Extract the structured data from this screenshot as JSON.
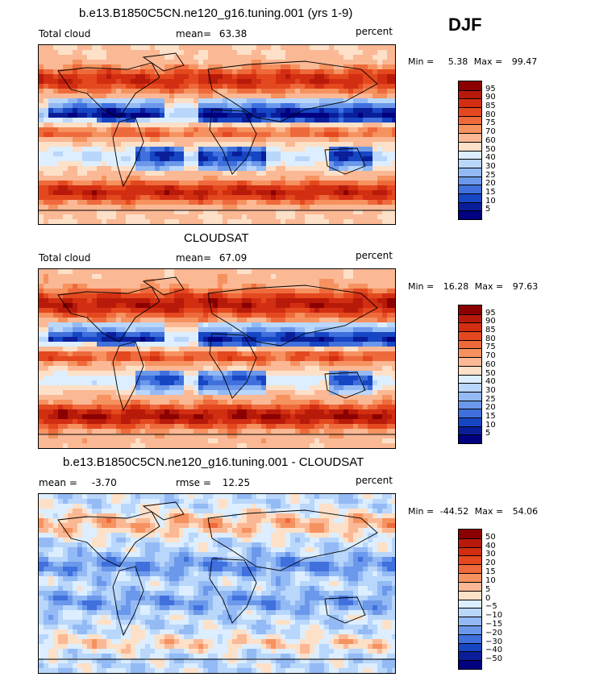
{
  "season": "DJF",
  "panels": [
    {
      "title": "b.e13.B1850C5CN.ne120_g16.tuning.001 (yrs 1-9)",
      "left_label": "Total cloud",
      "mean_label": "mean=",
      "mean_value": "63.38",
      "right_label": "percent",
      "min_label": "Min =",
      "min_value": "5.38",
      "max_label": "Max =",
      "max_value": "99.47",
      "colorbar": {
        "labels": [
          "95",
          "90",
          "85",
          "80",
          "75",
          "70",
          "60",
          "50",
          "40",
          "30",
          "25",
          "20",
          "15",
          "10",
          "5"
        ],
        "colors": [
          "#8b0000",
          "#b81a0a",
          "#d22e12",
          "#e4481e",
          "#ee6a3c",
          "#f5925f",
          "#fbb894",
          "#fde0c8",
          "#dceeff",
          "#b9d6fb",
          "#93baf4",
          "#6b98ea",
          "#3f70dd",
          "#1746c4",
          "#0a1e9a",
          "#000080"
        ]
      },
      "map_field": "model"
    },
    {
      "title": "CLOUDSAT",
      "left_label": "Total cloud",
      "mean_label": "mean=",
      "mean_value": "67.09",
      "right_label": "percent",
      "min_label": "Min =",
      "min_value": "16.28",
      "max_label": "Max =",
      "max_value": "97.63",
      "colorbar": {
        "labels": [
          "95",
          "90",
          "85",
          "80",
          "75",
          "70",
          "60",
          "50",
          "40",
          "30",
          "25",
          "20",
          "15",
          "10",
          "5"
        ],
        "colors": [
          "#8b0000",
          "#b81a0a",
          "#d22e12",
          "#e4481e",
          "#ee6a3c",
          "#f5925f",
          "#fbb894",
          "#fde0c8",
          "#dceeff",
          "#b9d6fb",
          "#93baf4",
          "#6b98ea",
          "#3f70dd",
          "#1746c4",
          "#0a1e9a",
          "#000080"
        ]
      },
      "map_field": "obs"
    },
    {
      "title": "b.e13.B1850C5CN.ne120_g16.tuning.001 - CLOUDSAT",
      "left_label": "mean =",
      "left_value": "-3.70",
      "mean_label": "rmse =",
      "mean_value": "12.25",
      "right_label": "percent",
      "min_label": "Min =",
      "min_value": "-44.52",
      "max_label": "Max =",
      "max_value": "54.06",
      "colorbar": {
        "labels": [
          "50",
          "40",
          "30",
          "20",
          "15",
          "10",
          "5",
          "0",
          "-5",
          "-10",
          "-15",
          "-20",
          "-30",
          "-40",
          "-50"
        ],
        "colors": [
          "#8b0000",
          "#b81a0a",
          "#d22e12",
          "#e4481e",
          "#ee6a3c",
          "#f5925f",
          "#fbb894",
          "#fde0c8",
          "#dceeff",
          "#b9d6fb",
          "#93baf4",
          "#6b98ea",
          "#3f70dd",
          "#1746c4",
          "#0a1e9a",
          "#000080"
        ]
      },
      "map_field": "diff"
    }
  ],
  "chart_data": [
    {
      "type": "heatmap",
      "title": "b.e13.B1850C5CN.ne120_g16.tuning.001 (yrs 1-9)",
      "variable": "Total cloud",
      "units": "percent",
      "season": "DJF",
      "mean": 63.38,
      "min": 5.38,
      "max": 99.47,
      "contour_levels": [
        5,
        10,
        15,
        20,
        25,
        30,
        40,
        50,
        60,
        70,
        75,
        80,
        85,
        90,
        95
      ]
    },
    {
      "type": "heatmap",
      "title": "CLOUDSAT",
      "variable": "Total cloud",
      "units": "percent",
      "season": "DJF",
      "mean": 67.09,
      "min": 16.28,
      "max": 97.63,
      "contour_levels": [
        5,
        10,
        15,
        20,
        25,
        30,
        40,
        50,
        60,
        70,
        75,
        80,
        85,
        90,
        95
      ]
    },
    {
      "type": "heatmap",
      "title": "b.e13.B1850C5CN.ne120_g16.tuning.001 - CLOUDSAT",
      "units": "percent",
      "season": "DJF",
      "mean": -3.7,
      "rmse": 12.25,
      "min": -44.52,
      "max": 54.06,
      "contour_levels": [
        -50,
        -40,
        -30,
        -20,
        -15,
        -10,
        -5,
        0,
        5,
        10,
        15,
        20,
        30,
        40,
        50
      ]
    }
  ]
}
